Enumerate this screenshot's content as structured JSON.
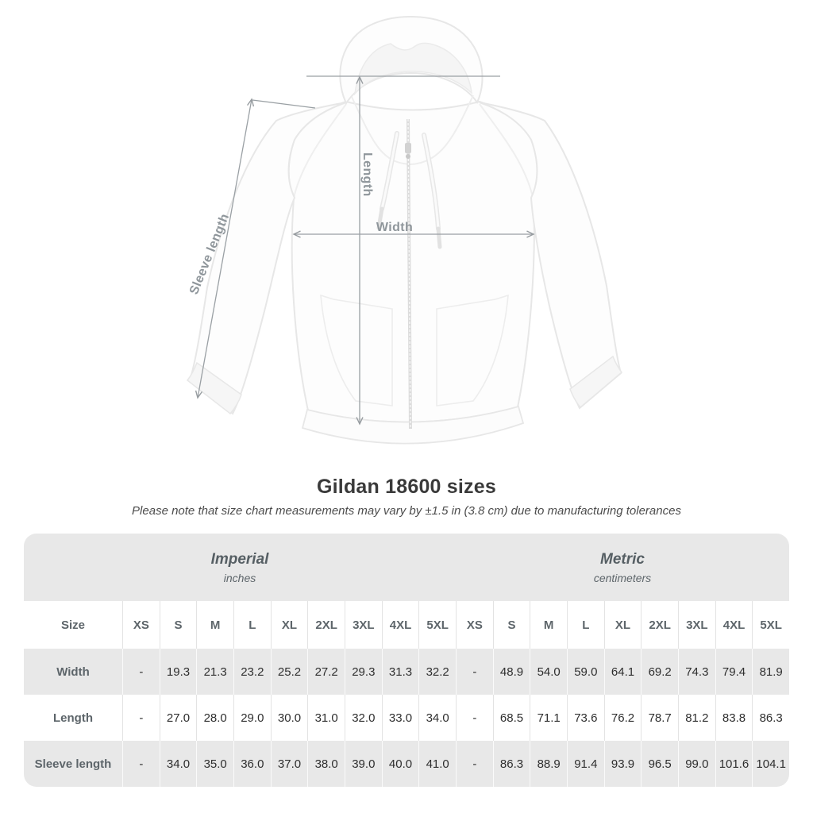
{
  "diagram": {
    "length_label": "Length",
    "width_label": "Width",
    "sleeve_label": "Sleeve length"
  },
  "heading": {
    "title": "Gildan 18600 sizes",
    "note": "Please note that size chart measurements may vary by ±1.5 in (3.8 cm) due to manufacturing tolerances"
  },
  "table": {
    "unit_groups": [
      {
        "name": "Imperial",
        "unit": "inches"
      },
      {
        "name": "Metric",
        "unit": "centimeters"
      }
    ],
    "size_column_header": "Size",
    "size_options": [
      "XS",
      "S",
      "M",
      "L",
      "XL",
      "2XL",
      "3XL",
      "4XL",
      "5XL"
    ],
    "measurement_rows": [
      {
        "label": "Width",
        "imperial": [
          "-",
          "19.3",
          "21.3",
          "23.2",
          "25.2",
          "27.2",
          "29.3",
          "31.3",
          "32.2"
        ],
        "metric": [
          "-",
          "48.9",
          "54.0",
          "59.0",
          "64.1",
          "69.2",
          "74.3",
          "79.4",
          "81.9"
        ]
      },
      {
        "label": "Length",
        "imperial": [
          "-",
          "27.0",
          "28.0",
          "29.0",
          "30.0",
          "31.0",
          "32.0",
          "33.0",
          "34.0"
        ],
        "metric": [
          "-",
          "68.5",
          "71.1",
          "73.6",
          "76.2",
          "78.7",
          "81.2",
          "83.8",
          "86.3"
        ]
      },
      {
        "label": "Sleeve length",
        "imperial": [
          "-",
          "34.0",
          "35.0",
          "36.0",
          "37.0",
          "38.0",
          "39.0",
          "40.0",
          "41.0"
        ],
        "metric": [
          "-",
          "86.3",
          "88.9",
          "91.4",
          "93.9",
          "96.5",
          "99.0",
          "101.6",
          "104.1"
        ]
      }
    ]
  },
  "colors": {
    "table_band": "#e8e8e8",
    "annotation": "#979ca0",
    "label_text": "#5d656a",
    "value_text": "#2e2e2e",
    "title_text": "#3a3a3a"
  }
}
